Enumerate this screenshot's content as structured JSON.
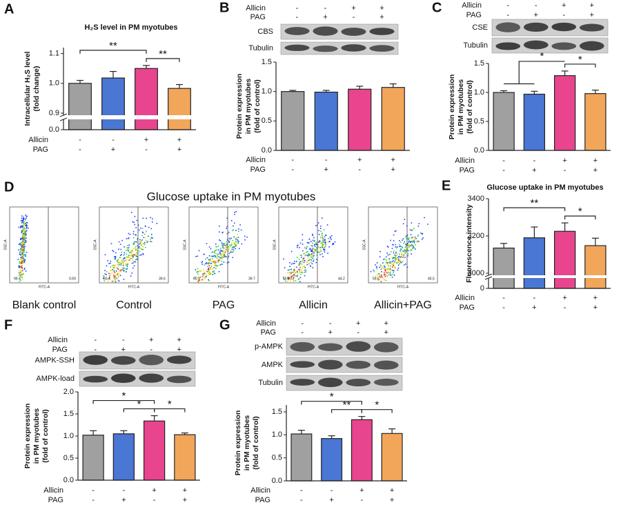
{
  "chart_data": [
    {
      "type": "bar",
      "panel": "A",
      "title": "H₂S level in PM myotubes",
      "ylabel": [
        "Intracellular H₂S level",
        "(fold change)"
      ],
      "row_labels": [
        "Allicin",
        "PAG"
      ],
      "rows": [
        [
          "-",
          "-",
          "+",
          "+"
        ],
        [
          "-",
          "+",
          "-",
          "+"
        ]
      ],
      "values": [
        1.0,
        1.018,
        1.05,
        0.983
      ],
      "errors": [
        0.01,
        0.022,
        0.01,
        0.013
      ],
      "colors": [
        "#a0a0a0",
        "#4a76d4",
        "#e8458e",
        "#f2a65a"
      ],
      "ylim": [
        0.9,
        1.12
      ],
      "yticks": [
        0.9,
        {
          "value": 1,
          "label": "1.0"
        },
        1.1
      ],
      "lower_ylim": [
        0,
        0.05
      ],
      "lower_yticks": [
        {
          "value": 0,
          "label": "0.0"
        }
      ],
      "annotations": [
        {
          "text": "**",
          "from": 0,
          "to": 2
        },
        {
          "text": "**",
          "from": 2,
          "to": 3
        }
      ]
    },
    {
      "type": "bar",
      "panel": "B",
      "blot": {
        "row_labels": [
          "Allicin",
          "PAG"
        ],
        "rows": [
          [
            "-",
            "-",
            "+",
            "+"
          ],
          [
            "-",
            "+",
            "-",
            "+"
          ]
        ],
        "bands": [
          "CBS",
          "Tubulin"
        ]
      },
      "ylabel": [
        "Protein expression",
        "in PM myotubes",
        "(fold of control)"
      ],
      "row_labels": [
        "Allicin",
        "PAG"
      ],
      "rows": [
        [
          "-",
          "-",
          "+",
          "+"
        ],
        [
          "-",
          "+",
          "-",
          "+"
        ]
      ],
      "values": [
        1.0,
        0.99,
        1.04,
        1.07
      ],
      "errors": [
        0.02,
        0.03,
        0.05,
        0.06
      ],
      "colors": [
        "#a0a0a0",
        "#4a76d4",
        "#e8458e",
        "#f2a65a"
      ],
      "ylim": [
        0,
        1.5
      ],
      "yticks": [
        {
          "value": 0,
          "label": "0.0"
        },
        0.5,
        {
          "value": 1,
          "label": "1.0"
        },
        1.5
      ],
      "annotations": []
    },
    {
      "type": "bar",
      "panel": "C",
      "blot": {
        "row_labels": [
          "Allicin",
          "PAG"
        ],
        "rows": [
          [
            "-",
            "-",
            "+",
            "+"
          ],
          [
            "-",
            "+",
            "-",
            "+"
          ]
        ],
        "bands": [
          "CSE",
          "Tubulin"
        ]
      },
      "ylabel": [
        "Protein expression",
        "in PM myotubes",
        "(fold of control)"
      ],
      "row_labels": [
        "Allicin",
        "PAG"
      ],
      "rows": [
        [
          "-",
          "-",
          "+",
          "+"
        ],
        [
          "-",
          "+",
          "-",
          "+"
        ]
      ],
      "values": [
        1.0,
        0.97,
        1.29,
        0.98
      ],
      "errors": [
        0.03,
        0.05,
        0.08,
        0.06
      ],
      "colors": [
        "#a0a0a0",
        "#4a76d4",
        "#e8458e",
        "#f2a65a"
      ],
      "ylim": [
        0,
        1.5
      ],
      "yticks": [
        {
          "value": 0,
          "label": "0.0"
        },
        0.5,
        {
          "value": 1,
          "label": "1.0"
        },
        1.5
      ],
      "annotations": [
        {
          "text": "*",
          "from": [
            0,
            1
          ],
          "to": 2
        },
        {
          "text": "*",
          "from": 2,
          "to": 3
        }
      ]
    },
    {
      "type": "flow",
      "panel": "D",
      "title": "Glucose uptake in PM myotubes",
      "xlabel": "FITC-A",
      "ylabel": "SSC-A",
      "plots": [
        {
          "name": "Blank control",
          "left": 99.4,
          "right": 0.59
        },
        {
          "name": "Control",
          "left": 60.4,
          "right": 39.6
        },
        {
          "name": "PAG",
          "left": 60.3,
          "right": 39.7
        },
        {
          "name": "Allicin",
          "left": 55.8,
          "right": 44.2
        },
        {
          "name": "Allicin+PAG",
          "left": 59.5,
          "right": 40.5
        }
      ]
    },
    {
      "type": "bar",
      "panel": "E",
      "title": "Glucose uptake in PM myotubes",
      "ylabel": [
        "Fluorescence intensity"
      ],
      "row_labels": [
        "Allicin",
        "PAG"
      ],
      "rows": [
        [
          "-",
          "-",
          "+",
          "+"
        ],
        [
          "-",
          "+",
          "-",
          "+"
        ]
      ],
      "values": [
        3135,
        3190,
        3225,
        3148
      ],
      "errors": [
        25,
        58,
        45,
        40
      ],
      "colors": [
        "#a0a0a0",
        "#4a76d4",
        "#e8458e",
        "#f2a65a"
      ],
      "ylim": [
        3000,
        3400
      ],
      "yticks": [
        3000,
        3200,
        3400
      ],
      "lower_ylim": [
        0,
        400
      ],
      "lower_yticks": [
        0
      ],
      "annotations": [
        {
          "text": "**",
          "from": 0,
          "to": 2
        },
        {
          "text": "*",
          "from": 2,
          "to": 3
        }
      ]
    },
    {
      "type": "bar",
      "panel": "F",
      "blot": {
        "row_labels": [
          "Allicin",
          "PAG"
        ],
        "rows": [
          [
            "-",
            "-",
            "+",
            "+"
          ],
          [
            "-",
            "+",
            "-",
            "+"
          ]
        ],
        "bands": [
          "AMPK-SSH",
          "AMPK-load"
        ]
      },
      "ylabel": [
        "Protein expression",
        "in PM myotubes",
        "(fold of control)"
      ],
      "row_labels": [
        "Allicin",
        "PAG"
      ],
      "rows": [
        [
          "-",
          "-",
          "+",
          "+"
        ],
        [
          "-",
          "+",
          "-",
          "+"
        ]
      ],
      "values": [
        1.02,
        1.05,
        1.34,
        1.03
      ],
      "errors": [
        0.1,
        0.07,
        0.12,
        0.04
      ],
      "colors": [
        "#a0a0a0",
        "#4a76d4",
        "#e8458e",
        "#f2a65a"
      ],
      "ylim": [
        0,
        2
      ],
      "yticks": [
        {
          "value": 0,
          "label": "0.0"
        },
        0.5,
        {
          "value": 1,
          "label": "1.0"
        },
        1.5,
        {
          "value": 2,
          "label": "2.0"
        }
      ],
      "annotations": [
        {
          "text": "*",
          "from": 0,
          "to": 2
        },
        {
          "text": "*",
          "from": 1,
          "to": 2
        },
        {
          "text": "*",
          "from": 2,
          "to": 3
        }
      ]
    },
    {
      "type": "bar",
      "panel": "G",
      "blot": {
        "row_labels": [
          "Allicin",
          "PAG"
        ],
        "rows": [
          [
            "-",
            "-",
            "+",
            "+"
          ],
          [
            "-",
            "+",
            "-",
            "+"
          ]
        ],
        "bands": [
          "p-AMPK",
          "AMPK",
          "Tubulin"
        ]
      },
      "ylabel": [
        "Protein expression",
        "in PM myotubes",
        "(fold of control)"
      ],
      "row_labels": [
        "Allicin",
        "PAG"
      ],
      "rows": [
        [
          "-",
          "-",
          "+",
          "+"
        ],
        [
          "-",
          "+",
          "-",
          "+"
        ]
      ],
      "values": [
        1.02,
        0.92,
        1.33,
        1.03
      ],
      "errors": [
        0.08,
        0.06,
        0.07,
        0.1
      ],
      "colors": [
        "#a0a0a0",
        "#4a76d4",
        "#e8458e",
        "#f2a65a"
      ],
      "ylim": [
        0,
        1.65
      ],
      "yticks": [
        {
          "value": 0,
          "label": "0.0"
        },
        0.5,
        {
          "value": 1,
          "label": "1.0"
        },
        1.5
      ],
      "annotations": [
        {
          "text": "*",
          "from": 0,
          "to": 2
        },
        {
          "text": "**",
          "from": 1,
          "to": 2
        },
        {
          "text": "*",
          "from": 2,
          "to": 3
        }
      ]
    }
  ]
}
